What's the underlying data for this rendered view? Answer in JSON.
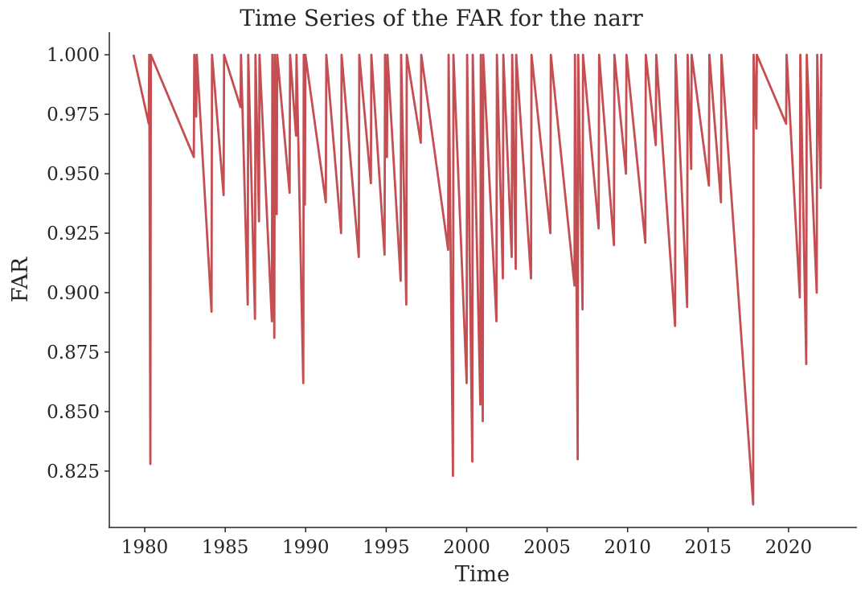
{
  "chart_data": {
    "type": "line",
    "title": "Time Series of the FAR for the narr",
    "x_label": "Time",
    "y_label": "FAR",
    "x": [
      1979.3,
      1980.25,
      1980.28,
      1980.35,
      1980.38,
      1983.05,
      1983.08,
      1983.2,
      1983.23,
      1984.15,
      1984.18,
      1984.9,
      1984.93,
      1985.95,
      1985.98,
      1986.4,
      1986.43,
      1986.85,
      1986.88,
      1987.1,
      1987.13,
      1987.9,
      1987.93,
      1988.05,
      1988.08,
      1988.2,
      1988.23,
      1989.0,
      1989.03,
      1989.4,
      1989.43,
      1989.85,
      1989.88,
      1989.95,
      1989.98,
      1991.25,
      1991.28,
      1992.2,
      1992.23,
      1993.3,
      1993.33,
      1994.05,
      1994.08,
      1994.9,
      1994.93,
      1995.05,
      1995.08,
      1995.9,
      1995.93,
      1996.25,
      1996.28,
      1997.15,
      1997.18,
      1998.85,
      1998.88,
      1999.15,
      1999.18,
      2000.0,
      2000.03,
      2000.35,
      2000.38,
      2000.85,
      2000.88,
      2001.0,
      2001.03,
      2001.85,
      2001.88,
      2002.25,
      2002.28,
      2002.8,
      2002.83,
      2003.05,
      2003.08,
      2004.0,
      2004.03,
      2005.2,
      2005.23,
      2006.7,
      2006.73,
      2006.9,
      2006.93,
      2007.2,
      2007.23,
      2008.2,
      2008.23,
      2009.15,
      2009.18,
      2009.9,
      2009.93,
      2011.1,
      2011.13,
      2011.75,
      2011.78,
      2012.95,
      2012.98,
      2013.7,
      2013.73,
      2013.95,
      2013.98,
      2015.05,
      2015.08,
      2015.8,
      2015.83,
      2017.8,
      2017.83,
      2018.0,
      2018.03,
      2019.85,
      2019.88,
      2020.7,
      2020.73,
      2021.1,
      2021.13,
      2021.75,
      2021.78,
      2022.0,
      2022.03,
      2022.1
    ],
    "values": [
      1,
      0.971,
      1,
      0.828,
      1,
      0.957,
      1,
      0.974,
      1,
      0.892,
      1,
      0.941,
      1,
      0.978,
      1,
      0.895,
      1,
      0.889,
      1,
      0.93,
      1,
      0.888,
      1,
      0.881,
      1,
      0.933,
      1,
      0.942,
      1,
      0.966,
      1,
      0.862,
      1,
      0.937,
      1,
      0.938,
      1,
      0.925,
      1,
      0.915,
      1,
      0.946,
      1,
      0.916,
      1,
      0.957,
      1,
      0.905,
      1,
      0.895,
      1,
      0.963,
      1,
      0.918,
      1,
      0.823,
      1,
      0.862,
      1,
      0.829,
      1,
      0.853,
      1,
      0.846,
      1,
      0.888,
      1,
      0.906,
      1,
      0.915,
      1,
      0.91,
      1,
      0.906,
      1,
      0.925,
      1,
      0.903,
      1,
      0.83,
      1,
      0.893,
      1,
      0.927,
      1,
      0.92,
      1,
      0.95,
      1,
      0.921,
      1,
      0.962,
      1,
      0.886,
      1,
      0.894,
      1,
      0.952,
      1,
      0.945,
      1,
      0.938,
      1,
      0.811,
      1,
      0.969,
      1,
      0.971,
      1,
      0.898,
      1,
      0.87,
      1,
      0.9,
      1,
      0.944,
      1,
      1
    ],
    "color": "#c44e52",
    "xlim": [
      1977.8,
      2024.25
    ],
    "xticks": [
      1980,
      1985,
      1990,
      1995,
      2000,
      2005,
      2010,
      2015,
      2020
    ],
    "ylim": [
      0.8013,
      1.0095
    ],
    "yticks": [
      0.825,
      0.85,
      0.875,
      0.9,
      0.925,
      0.95,
      0.975,
      1
    ],
    "ytick_labels_fixed": null
  }
}
